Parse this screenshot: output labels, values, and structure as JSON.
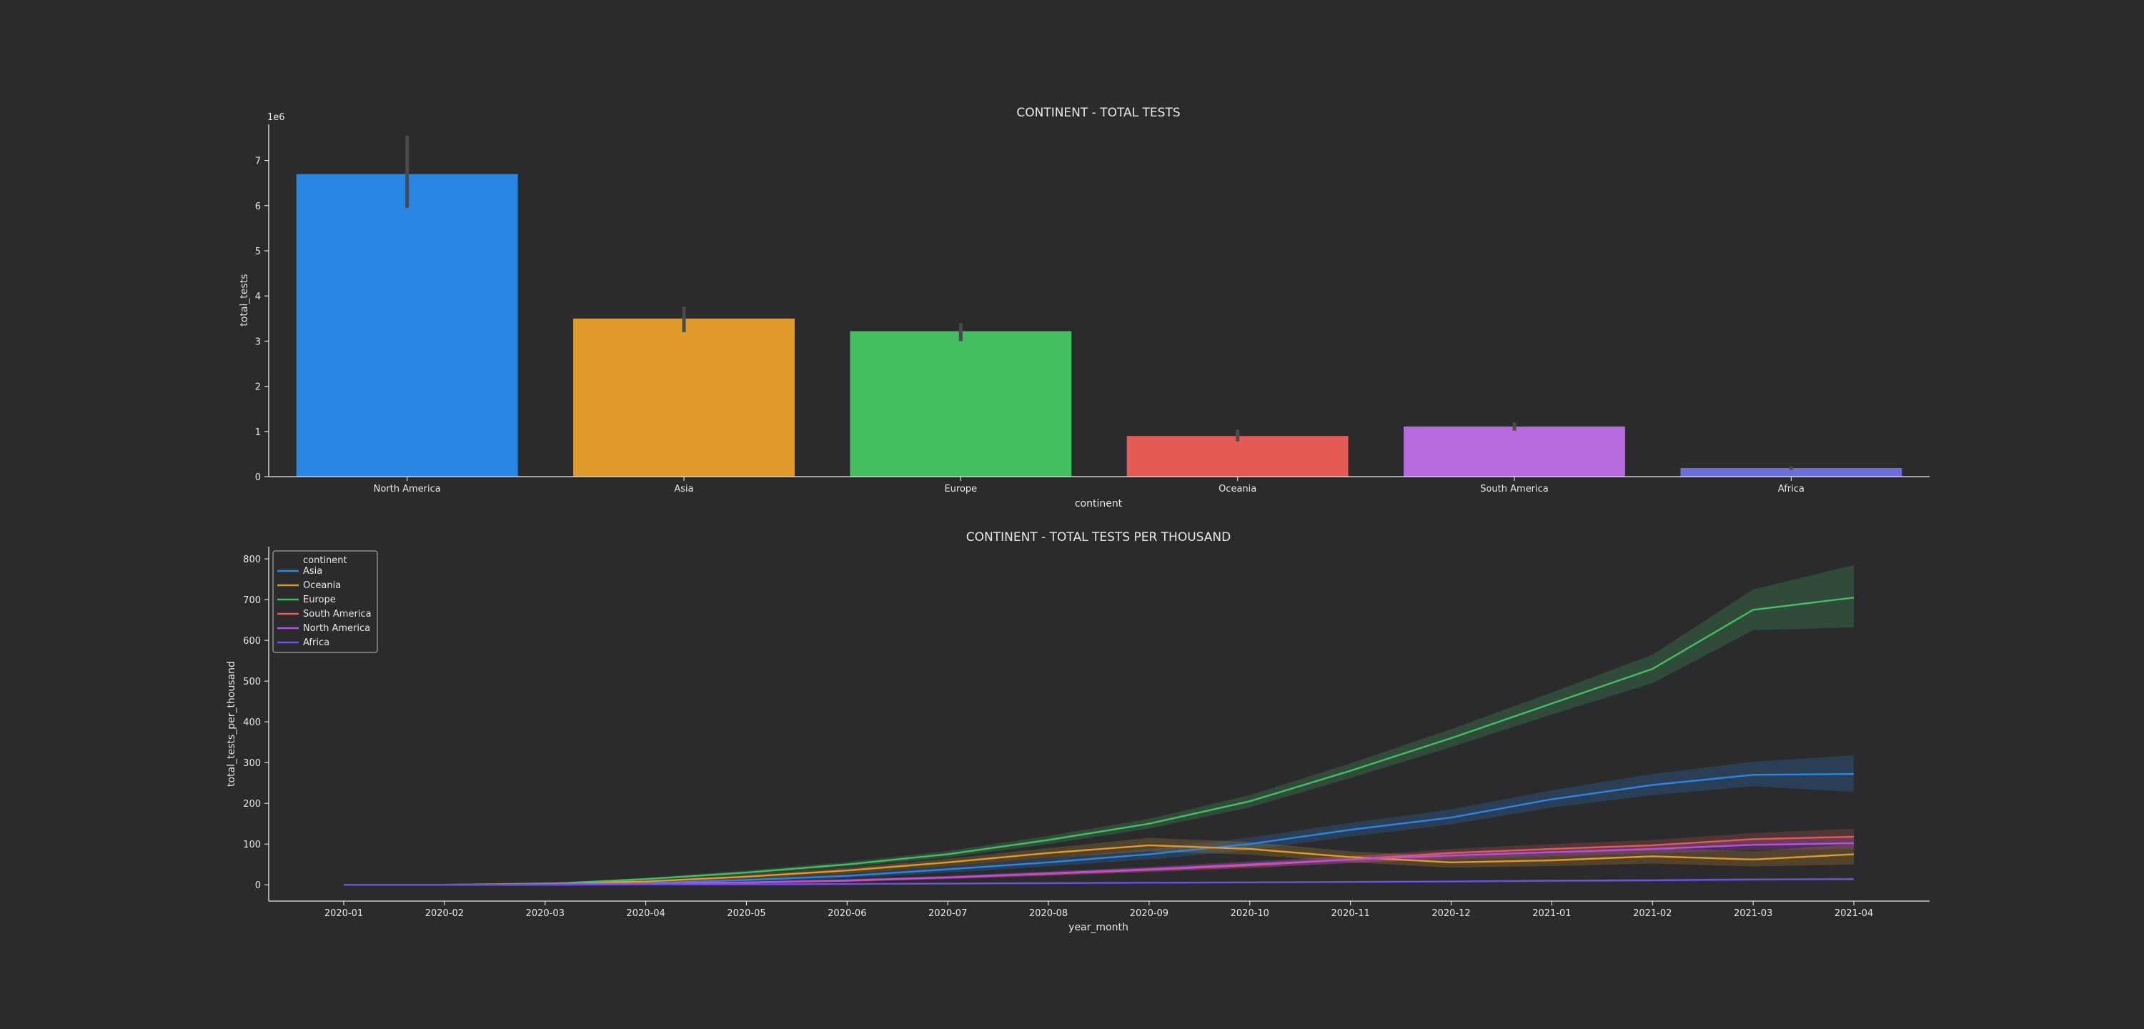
{
  "chart_data": [
    {
      "type": "bar",
      "title": "CONTINENT - TOTAL TESTS",
      "xlabel": "continent",
      "ylabel": "total_tests",
      "offset_label": "1e6",
      "ylim": [
        0,
        7800000
      ],
      "yticks": [
        0,
        1000000,
        2000000,
        3000000,
        4000000,
        5000000,
        6000000,
        7000000
      ],
      "ytick_labels": [
        "0",
        "1",
        "2",
        "3",
        "4",
        "5",
        "6",
        "7"
      ],
      "grid": false,
      "categories": [
        "North America",
        "Asia",
        "Europe",
        "Oceania",
        "South America",
        "Africa"
      ],
      "values": [
        6700000,
        3500000,
        3220000,
        900000,
        1110000,
        190000
      ],
      "error_low": [
        5950000,
        3200000,
        3000000,
        780000,
        1020000,
        150000
      ],
      "error_high": [
        7550000,
        3760000,
        3400000,
        1040000,
        1200000,
        230000
      ],
      "colors": [
        "#2b86e3",
        "#e0992b",
        "#45be62",
        "#e45b56",
        "#b86be0",
        "#6b6ce0"
      ]
    },
    {
      "type": "line",
      "title": "CONTINENT - TOTAL TESTS PER THOUSAND",
      "xlabel": "year_month",
      "ylabel": "total_tests_per_thousand",
      "ylim": [
        -40,
        830
      ],
      "yticks": [
        0,
        100,
        200,
        300,
        400,
        500,
        600,
        700,
        800
      ],
      "grid": false,
      "legend": {
        "title": "continent",
        "placement": "top-left"
      },
      "x": [
        "2020-01",
        "2020-02",
        "2020-03",
        "2020-04",
        "2020-05",
        "2020-06",
        "2020-07",
        "2020-08",
        "2020-09",
        "2020-10",
        "2020-11",
        "2020-12",
        "2021-01",
        "2021-02",
        "2021-03",
        "2021-04"
      ],
      "series": [
        {
          "name": "Asia",
          "color": "#2b86e3",
          "values": [
            0,
            0,
            1,
            4,
            12,
            22,
            38,
            55,
            75,
            100,
            135,
            165,
            210,
            245,
            270,
            272
          ],
          "band_low": [
            0,
            0,
            0,
            2,
            8,
            16,
            30,
            45,
            62,
            85,
            118,
            148,
            190,
            220,
            242,
            228
          ],
          "band_high": [
            0,
            0,
            2,
            6,
            16,
            28,
            46,
            65,
            88,
            116,
            152,
            185,
            232,
            272,
            302,
            318
          ]
        },
        {
          "name": "Oceania",
          "color": "#e0992b",
          "values": [
            0,
            0,
            3,
            8,
            20,
            35,
            55,
            78,
            97,
            88,
            68,
            55,
            60,
            70,
            62,
            75
          ],
          "band_low": [
            0,
            0,
            1,
            5,
            15,
            28,
            46,
            66,
            82,
            74,
            55,
            42,
            46,
            52,
            45,
            50
          ],
          "band_high": [
            0,
            0,
            5,
            11,
            25,
            42,
            64,
            90,
            115,
            105,
            82,
            70,
            76,
            90,
            82,
            100
          ]
        },
        {
          "name": "Europe",
          "color": "#45be62",
          "values": [
            0,
            0,
            2,
            14,
            30,
            50,
            75,
            110,
            150,
            205,
            280,
            360,
            445,
            530,
            675,
            705
          ],
          "band_low": [
            0,
            0,
            1,
            11,
            25,
            44,
            67,
            100,
            138,
            190,
            262,
            338,
            418,
            495,
            625,
            632
          ],
          "band_high": [
            0,
            0,
            3,
            17,
            35,
            56,
            83,
            120,
            162,
            220,
            298,
            382,
            472,
            565,
            725,
            785
          ]
        },
        {
          "name": "South America",
          "color": "#e45b56",
          "values": [
            0,
            0,
            0,
            2,
            5,
            10,
            18,
            27,
            37,
            48,
            62,
            78,
            88,
            97,
            112,
            118
          ],
          "band_low": [
            0,
            0,
            0,
            1,
            3,
            7,
            14,
            22,
            31,
            41,
            54,
            68,
            76,
            84,
            97,
            100
          ],
          "band_high": [
            0,
            0,
            1,
            3,
            7,
            13,
            22,
            32,
            43,
            55,
            70,
            88,
            100,
            110,
            127,
            138
          ]
        },
        {
          "name": "North America",
          "color": "#b84fe0",
          "values": [
            0,
            0,
            1,
            3,
            6,
            11,
            18,
            28,
            38,
            50,
            62,
            72,
            80,
            88,
            98,
            102
          ],
          "band_low": [
            0,
            0,
            0,
            1,
            4,
            8,
            14,
            23,
            32,
            42,
            53,
            62,
            70,
            77,
            85,
            88
          ],
          "band_high": [
            0,
            0,
            2,
            5,
            8,
            14,
            22,
            33,
            44,
            58,
            71,
            82,
            90,
            99,
            111,
            116
          ]
        },
        {
          "name": "Africa",
          "color": "#6b52e0",
          "values": [
            0,
            0,
            0,
            1,
            1,
            2,
            3,
            4,
            5,
            6,
            7,
            8,
            10,
            11,
            13,
            14
          ],
          "band_low": [
            0,
            0,
            0,
            0,
            0,
            1,
            2,
            3,
            3,
            4,
            5,
            6,
            7,
            8,
            10,
            11
          ],
          "band_high": [
            0,
            0,
            0,
            1,
            2,
            3,
            4,
            5,
            6,
            8,
            9,
            10,
            12,
            14,
            16,
            17
          ]
        }
      ]
    }
  ]
}
